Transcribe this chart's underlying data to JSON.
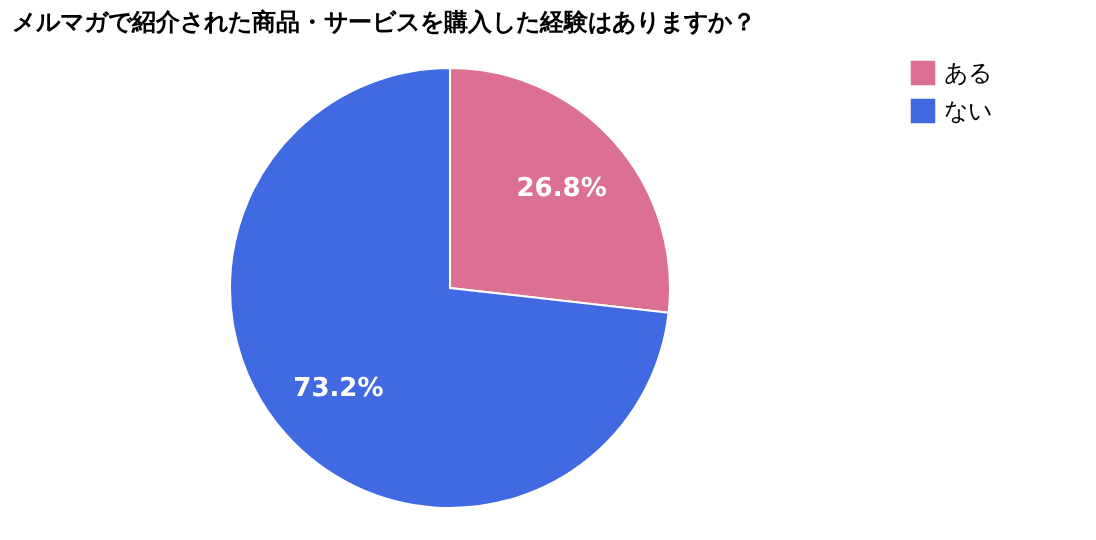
{
  "chart_data": {
    "type": "pie",
    "title": "メルマガで紹介された商品・サービスを購入した経験はありますか？",
    "categories": [
      "ある",
      "ない"
    ],
    "values": [
      26.8,
      73.2
    ],
    "colors": [
      "#dc7093",
      "#4169e1"
    ],
    "value_labels": [
      "26.8%",
      "73.2%"
    ],
    "legend": "top right"
  }
}
